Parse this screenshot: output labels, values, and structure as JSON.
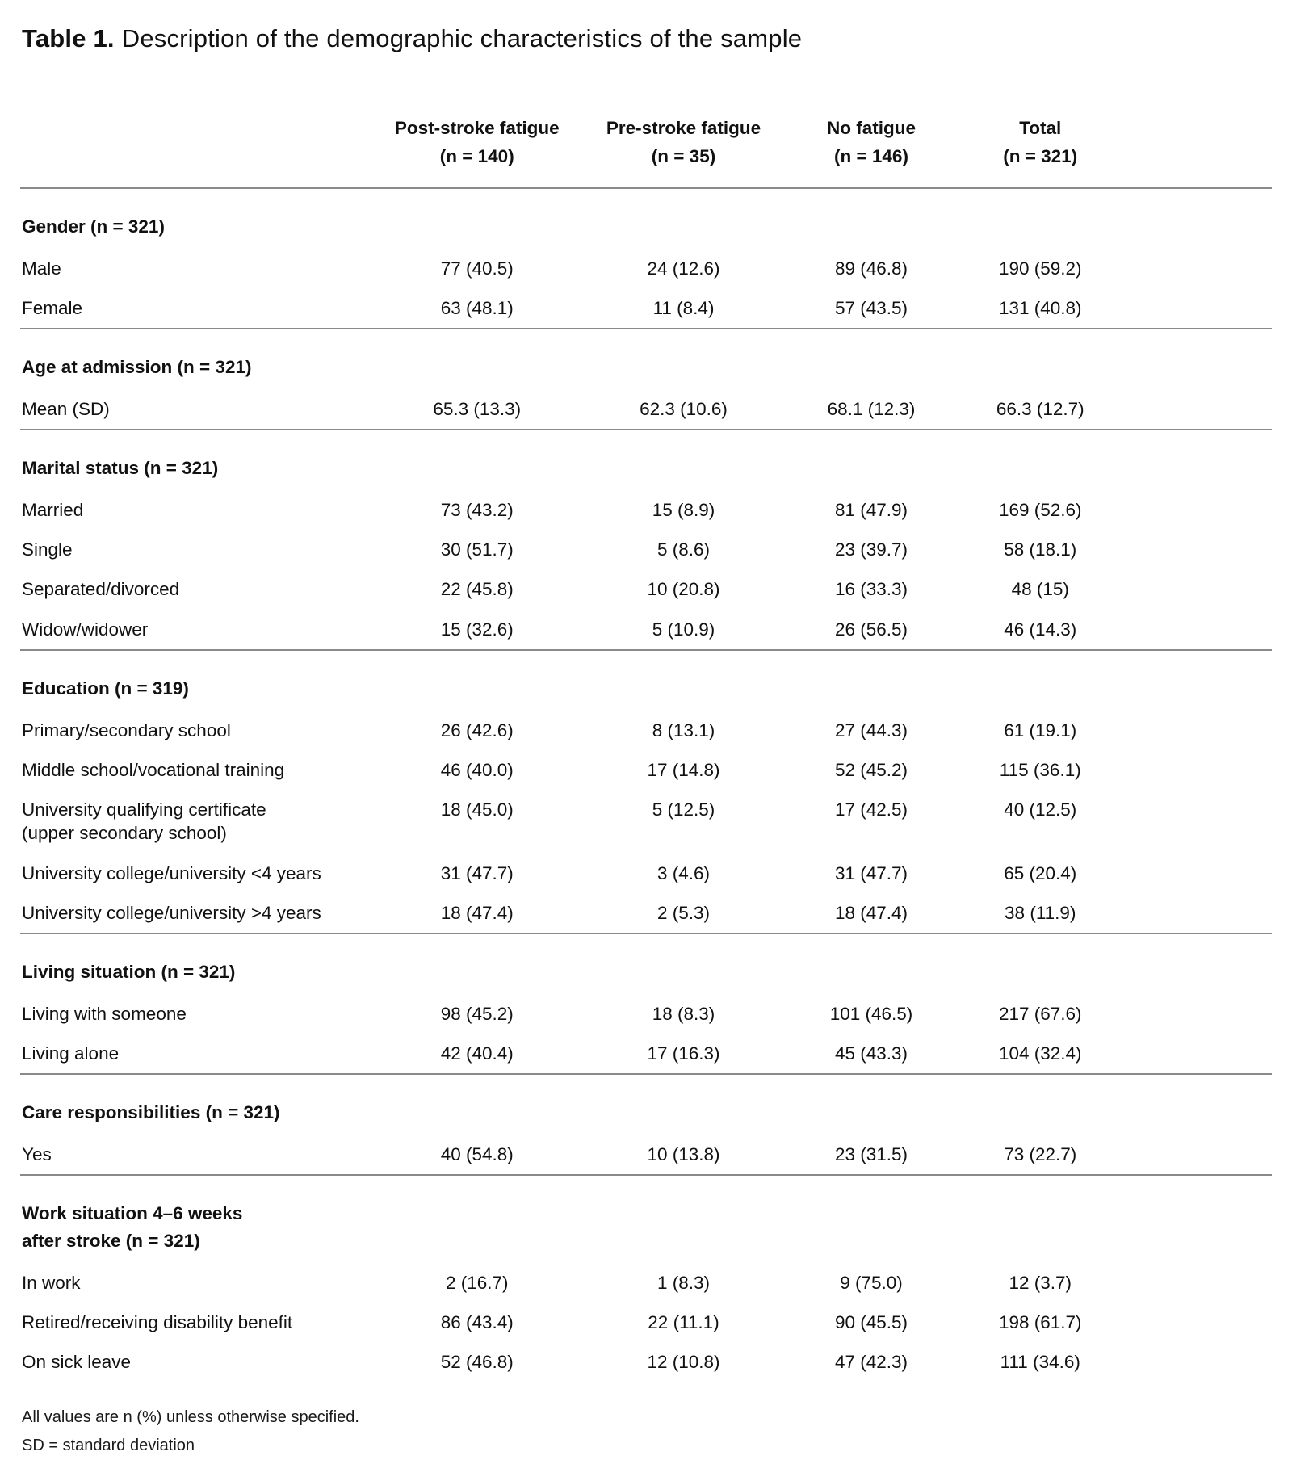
{
  "colors": {
    "accent_green": "#7cc242",
    "divider_gray": "#8a8a8a",
    "text": "#111111"
  },
  "title": {
    "label": "Table 1.",
    "text": "Description of the demographic characteristics of the sample"
  },
  "table": {
    "columns": [
      {
        "name": "Post-stroke fatigue",
        "n": "(n = 140)"
      },
      {
        "name": "Pre-stroke fatigue",
        "n": "(n = 35)"
      },
      {
        "name": "No fatigue",
        "n": "(n = 146)"
      },
      {
        "name": "Total",
        "n": "(n = 321)"
      }
    ],
    "sections": [
      {
        "header": "Gender (n = 321)",
        "rows": [
          {
            "label": "Male",
            "values": [
              "77 (40.5)",
              "24 (12.6)",
              "89 (46.8)",
              "190 (59.2)"
            ]
          },
          {
            "label": "Female",
            "values": [
              "63 (48.1)",
              "11 (8.4)",
              "57 (43.5)",
              "131 (40.8)"
            ]
          }
        ]
      },
      {
        "header": "Age at admission (n = 321)",
        "rows": [
          {
            "label": "Mean (SD)",
            "values": [
              "65.3 (13.3)",
              "62.3 (10.6)",
              "68.1 (12.3)",
              "66.3 (12.7)"
            ]
          }
        ]
      },
      {
        "header": "Marital status (n = 321)",
        "rows": [
          {
            "label": "Married",
            "values": [
              "73 (43.2)",
              "15 (8.9)",
              "81 (47.9)",
              "169 (52.6)"
            ]
          },
          {
            "label": "Single",
            "values": [
              "30 (51.7)",
              "5 (8.6)",
              "23 (39.7)",
              "58 (18.1)"
            ]
          },
          {
            "label": "Separated/divorced",
            "values": [
              "22 (45.8)",
              "10 (20.8)",
              "16 (33.3)",
              "48 (15)"
            ]
          },
          {
            "label": "Widow/widower",
            "values": [
              "15 (32.6)",
              "5 (10.9)",
              "26 (56.5)",
              "46 (14.3)"
            ]
          }
        ]
      },
      {
        "header": "Education (n = 319)",
        "rows": [
          {
            "label": "Primary/secondary school",
            "values": [
              "26 (42.6)",
              "8 (13.1)",
              "27 (44.3)",
              "61 (19.1)"
            ]
          },
          {
            "label": "Middle school/vocational training",
            "values": [
              "46 (40.0)",
              "17 (14.8)",
              "52 (45.2)",
              "115 (36.1)"
            ]
          },
          {
            "label": "University qualifying certificate\n(upper secondary school)",
            "values": [
              "18 (45.0)",
              "5 (12.5)",
              "17 (42.5)",
              "40 (12.5)"
            ]
          },
          {
            "label": "University college/university <4 years",
            "values": [
              "31 (47.7)",
              "3 (4.6)",
              "31 (47.7)",
              "65 (20.4)"
            ]
          },
          {
            "label": "University college/university >4 years",
            "values": [
              "18 (47.4)",
              "2 (5.3)",
              "18 (47.4)",
              "38 (11.9)"
            ]
          }
        ]
      },
      {
        "header": "Living situation (n = 321)",
        "rows": [
          {
            "label": "Living with someone",
            "values": [
              "98 (45.2)",
              "18 (8.3)",
              "101 (46.5)",
              "217 (67.6)"
            ]
          },
          {
            "label": "Living alone",
            "values": [
              "42 (40.4)",
              "17 (16.3)",
              "45 (43.3)",
              "104 (32.4)"
            ]
          }
        ]
      },
      {
        "header": "Care responsibilities (n = 321)",
        "rows": [
          {
            "label": "Yes",
            "values": [
              "40 (54.8)",
              "10 (13.8)",
              "23 (31.5)",
              "73 (22.7)"
            ]
          }
        ]
      },
      {
        "header": "Work situation 4–6 weeks\nafter stroke (n = 321)",
        "rows": [
          {
            "label": "In work",
            "values": [
              "2 (16.7)",
              "1 (8.3)",
              "9 (75.0)",
              "12 (3.7)"
            ]
          },
          {
            "label": "Retired/receiving disability benefit",
            "values": [
              "86 (43.4)",
              "22 (11.1)",
              "90 (45.5)",
              "198 (61.7)"
            ]
          },
          {
            "label": "On sick leave",
            "values": [
              "52 (46.8)",
              "12 (10.8)",
              "47 (42.3)",
              "111 (34.6)"
            ]
          }
        ]
      }
    ]
  },
  "footnotes": [
    "All values are n (%) unless otherwise specified.",
    "SD = standard deviation"
  ]
}
